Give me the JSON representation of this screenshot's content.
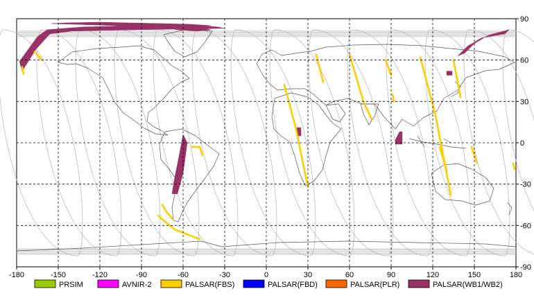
{
  "map": {
    "projection": "equirectangular",
    "lon_range": [
      -180,
      180
    ],
    "lat_range": [
      -90,
      90
    ],
    "grid": true,
    "lon_ticks": [
      "-180",
      "-150",
      "-120",
      "-90",
      "-60",
      "-30",
      "0",
      "30",
      "60",
      "90",
      "120",
      "150",
      "180"
    ],
    "lat_ticks": [
      "90",
      "60",
      "30",
      "0",
      "-30",
      "-60",
      "-90"
    ],
    "lon_tick_values": [
      -180,
      -150,
      -120,
      -90,
      -60,
      -30,
      0,
      30,
      60,
      90,
      120,
      150,
      180
    ],
    "lat_tick_values": [
      90,
      60,
      30,
      0,
      -30,
      -60,
      -90
    ]
  },
  "legend": [
    {
      "label": "PRSIM",
      "color": "#99cc00"
    },
    {
      "label": "AVNIR-2",
      "color": "#ff00ff"
    },
    {
      "label": "PALSAR(FBS)",
      "color": "#ffcc00"
    },
    {
      "label": "PALSAR(FBD)",
      "color": "#0000ff"
    },
    {
      "label": "PALSAR(PLR)",
      "color": "#ff6600"
    },
    {
      "label": "PALSAR(WB1/WB2)",
      "color": "#993366"
    }
  ],
  "colors": {
    "grid": "#000000",
    "tracks": "#bbbbbb",
    "coast": "#555555",
    "fbs": "#ffcc00",
    "wb": "#993366"
  },
  "observations": {
    "wb": [
      {
        "lon": [
          -178,
          -165,
          -158,
          -132,
          -110,
          -95,
          -80,
          -62,
          -48,
          -35,
          -30,
          -60,
          -90,
          -118,
          -140,
          -156,
          -166,
          -176
        ],
        "lat": [
          59,
          77,
          82,
          84,
          84.5,
          85,
          85.5,
          85.5,
          85,
          84,
          83,
          82.5,
          82,
          81.5,
          81,
          79,
          68,
          52
        ]
      },
      {
        "lon": [
          -155,
          -145,
          -120,
          -100,
          -75,
          -55,
          -40,
          -75,
          -110,
          -140
        ],
        "lat": [
          86.5,
          87,
          87.5,
          87,
          86.5,
          86,
          85,
          83,
          85,
          86
        ]
      },
      {
        "lon": [
          -75,
          -60,
          -50,
          -40,
          -50,
          -65
        ],
        "lat": [
          84.5,
          85,
          84,
          82,
          81,
          82
        ]
      },
      {
        "lon": [
          -60,
          -63,
          -66,
          -68,
          -64,
          -60,
          -57
        ],
        "lat": [
          6,
          -10,
          -25,
          -37,
          -37,
          -22,
          0
        ]
      },
      {
        "lon": [
          143,
          150,
          160,
          175,
          172,
          155,
          145,
          138
        ],
        "lat": [
          65,
          72,
          78,
          82,
          79,
          76,
          70,
          63
        ]
      },
      {
        "lon": [
          130,
          134,
          134,
          130
        ],
        "lat": [
          52,
          52,
          49,
          49
        ]
      },
      {
        "lon": [
          22,
          25,
          25,
          22
        ],
        "lat": [
          11,
          11,
          5,
          5
        ]
      },
      {
        "lon": [
          96,
          98,
          98,
          93,
          93
        ],
        "lat": [
          8,
          8,
          -1,
          -1,
          2
        ]
      }
    ],
    "fbs": [
      {
        "lon": [
          -78,
          -66,
          -48
        ],
        "lat": [
          -53,
          -63,
          -70
        ]
      },
      {
        "lon": [
          -75,
          -72,
          -68
        ],
        "lat": [
          -45,
          -50,
          -55
        ]
      },
      {
        "lon": [
          -54,
          -48,
          -46
        ],
        "lat": [
          -3,
          -3,
          -9
        ]
      },
      {
        "lon": [
          13,
          21,
          30
        ],
        "lat": [
          42,
          12,
          -32
        ]
      },
      {
        "lon": [
          36,
          41
        ],
        "lat": [
          64,
          44
        ]
      },
      {
        "lon": [
          60,
          70,
          76
        ],
        "lat": [
          64,
          30,
          17
        ]
      },
      {
        "lon": [
          86,
          90
        ],
        "lat": [
          60,
          49
        ]
      },
      {
        "lon": [
          91,
          92
        ],
        "lat": [
          35,
          30
        ]
      },
      {
        "lon": [
          111,
          122,
          133
        ],
        "lat": [
          62,
          20,
          -38
        ]
      },
      {
        "lon": [
          125,
          130
        ],
        "lat": [
          -3,
          -20
        ]
      },
      {
        "lon": [
          135,
          140
        ],
        "lat": [
          60,
          33
        ]
      },
      {
        "lon": [
          148,
          152
        ],
        "lat": [
          -3,
          -15
        ]
      },
      {
        "lon": [
          -167,
          -162
        ],
        "lat": [
          66,
          60
        ]
      },
      {
        "lon": [
          -176,
          -175
        ],
        "lat": [
          55,
          50
        ]
      },
      {
        "lon": [
          178,
          179
        ],
        "lat": [
          -15,
          -19
        ]
      }
    ]
  }
}
